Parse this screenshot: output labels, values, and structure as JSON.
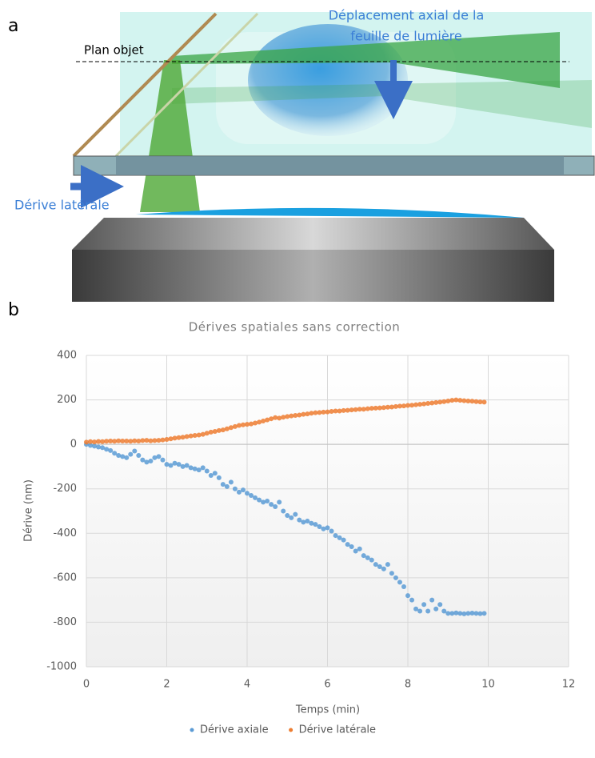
{
  "diagram": {
    "panel_label": "a",
    "object_plane": "Plan objet",
    "axial_shift": [
      "Déplacement axial de la",
      "feuille de lumière"
    ],
    "lateral_drift": "Dérive latérale"
  },
  "panel_b_label": "b",
  "chart_data": {
    "type": "scatter",
    "title": "Dérives spatiales sans correction",
    "x_label": "Temps (min)",
    "y_label": "Dérive (nm)",
    "xlim": [
      0,
      12
    ],
    "xticks": [
      0,
      2,
      4,
      6,
      8,
      10,
      12
    ],
    "ylim": [
      -1000,
      400
    ],
    "yticks": [
      -1000,
      -800,
      -600,
      -400,
      -200,
      0,
      200,
      400
    ],
    "grid": true,
    "legend": "bottom",
    "x": [
      0.0,
      0.1,
      0.2,
      0.3,
      0.4,
      0.5,
      0.6,
      0.7,
      0.8,
      0.9,
      1.0,
      1.1,
      1.2,
      1.3,
      1.4,
      1.5,
      1.6,
      1.7,
      1.8,
      1.9,
      2.0,
      2.1,
      2.2,
      2.3,
      2.4,
      2.5,
      2.6,
      2.7,
      2.8,
      2.9,
      3.0,
      3.1,
      3.2,
      3.3,
      3.4,
      3.5,
      3.6,
      3.7,
      3.8,
      3.9,
      4.0,
      4.1,
      4.2,
      4.3,
      4.4,
      4.5,
      4.6,
      4.7,
      4.8,
      4.9,
      5.0,
      5.1,
      5.2,
      5.3,
      5.4,
      5.5,
      5.6,
      5.7,
      5.8,
      5.9,
      6.0,
      6.1,
      6.2,
      6.3,
      6.4,
      6.5,
      6.6,
      6.7,
      6.8,
      6.9,
      7.0,
      7.1,
      7.2,
      7.3,
      7.4,
      7.5,
      7.6,
      7.7,
      7.8,
      7.9,
      8.0,
      8.1,
      8.2,
      8.3,
      8.4,
      8.5,
      8.6,
      8.7,
      8.8,
      8.9,
      9.0,
      9.1,
      9.2,
      9.3,
      9.4,
      9.5,
      9.6,
      9.7,
      9.8,
      9.9
    ],
    "series": [
      {
        "name": "Dérive axiale",
        "color": "#5b9bd5",
        "values": [
          0,
          -5,
          -8,
          -12,
          -15,
          -22,
          -28,
          -40,
          -50,
          -55,
          -60,
          -45,
          -30,
          -50,
          -70,
          -80,
          -75,
          -60,
          -55,
          -70,
          -90,
          -95,
          -85,
          -90,
          -100,
          -95,
          -105,
          -110,
          -115,
          -105,
          -120,
          -140,
          -130,
          -150,
          -180,
          -190,
          -170,
          -200,
          -215,
          -205,
          -220,
          -230,
          -240,
          -250,
          -260,
          -255,
          -270,
          -280,
          -260,
          -300,
          -320,
          -330,
          -315,
          -340,
          -350,
          -345,
          -355,
          -360,
          -370,
          -380,
          -375,
          -390,
          -410,
          -420,
          -430,
          -450,
          -460,
          -480,
          -470,
          -500,
          -510,
          -520,
          -540,
          -550,
          -560,
          -540,
          -580,
          -600,
          -620,
          -640,
          -680,
          -700,
          -740,
          -750,
          -720,
          -750,
          -700,
          -740,
          -720,
          -750,
          -760,
          -760,
          -758,
          -760,
          -762,
          -760,
          -759,
          -760,
          -761,
          -760
        ]
      },
      {
        "name": "Dérive latérale",
        "color": "#ed7d31",
        "values": [
          10,
          12,
          11,
          13,
          12,
          14,
          15,
          14,
          16,
          15,
          15,
          14,
          16,
          15,
          17,
          18,
          16,
          17,
          18,
          20,
          22,
          25,
          28,
          30,
          32,
          35,
          38,
          40,
          42,
          45,
          50,
          55,
          58,
          62,
          65,
          70,
          75,
          80,
          85,
          88,
          90,
          92,
          96,
          100,
          105,
          110,
          115,
          120,
          118,
          122,
          125,
          128,
          130,
          132,
          135,
          137,
          140,
          142,
          143,
          145,
          146,
          148,
          150,
          150,
          152,
          153,
          155,
          156,
          158,
          158,
          160,
          162,
          163,
          164,
          165,
          167,
          168,
          170,
          172,
          173,
          175,
          176,
          178,
          180,
          182,
          184,
          186,
          188,
          190,
          192,
          195,
          198,
          200,
          198,
          196,
          195,
          194,
          192,
          191,
          190
        ]
      }
    ]
  }
}
